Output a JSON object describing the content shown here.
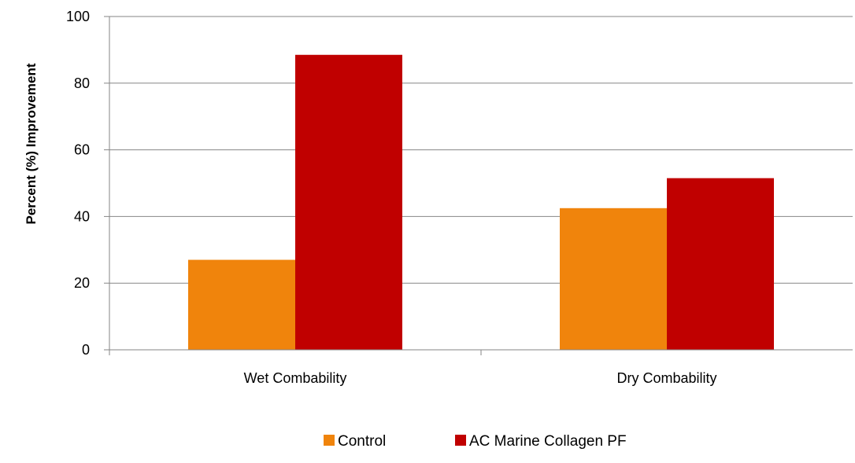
{
  "chart_data": {
    "type": "bar",
    "title": "",
    "xlabel": "",
    "ylabel": "Percent (%) Improvement",
    "categories": [
      "Wet Combability",
      "Dry Combability"
    ],
    "series": [
      {
        "name": "Control",
        "values": [
          27,
          42.5
        ],
        "color": "#f0840c"
      },
      {
        "name": "AC Marine Collagen PF",
        "values": [
          88.5,
          51.5
        ],
        "color": "#c00000"
      }
    ],
    "ylim": [
      0,
      100
    ],
    "yticks": [
      0,
      20,
      40,
      60,
      80,
      100
    ],
    "grid": true,
    "legend_position": "bottom"
  }
}
